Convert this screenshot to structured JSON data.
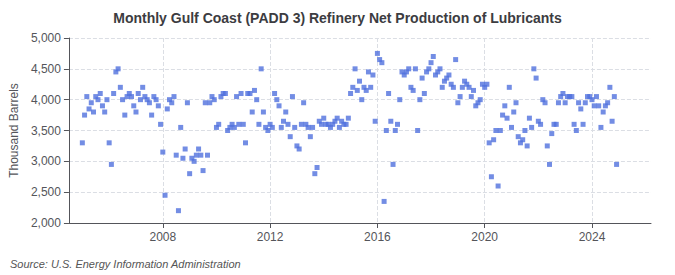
{
  "chart_data": {
    "type": "scatter",
    "title": "Monthly Gulf Coast (PADD 3) Refinery Net Production of Lubricants",
    "ylabel": "Thousand Barrels",
    "annotation": "Source: U.S. Energy Information Administration",
    "marker": "square",
    "grid": true,
    "xlim": [
      2004.5,
      2026.2
    ],
    "xticks": [
      2008,
      2012,
      2016,
      2020,
      2024
    ],
    "ylim": [
      2000,
      5000
    ],
    "yticks": [
      {
        "value": 2000,
        "label": "2,000"
      },
      {
        "value": 2500,
        "label": "2,500"
      },
      {
        "value": 3000,
        "label": "3,000"
      },
      {
        "value": 3500,
        "label": "3,500"
      },
      {
        "value": 4000,
        "label": "4,000"
      },
      {
        "value": 4500,
        "label": "4,500"
      },
      {
        "value": 5000,
        "label": "5,000"
      }
    ],
    "x": [
      2005.0,
      2005.083,
      2005.167,
      2005.25,
      2005.333,
      2005.417,
      2005.5,
      2005.583,
      2005.667,
      2005.75,
      2005.833,
      2005.917,
      2006.0,
      2006.083,
      2006.167,
      2006.25,
      2006.333,
      2006.417,
      2006.5,
      2006.583,
      2006.667,
      2006.75,
      2006.833,
      2006.917,
      2007.0,
      2007.083,
      2007.167,
      2007.25,
      2007.333,
      2007.417,
      2007.5,
      2007.583,
      2007.667,
      2007.75,
      2007.833,
      2007.917,
      2008.0,
      2008.083,
      2008.167,
      2008.25,
      2008.333,
      2008.417,
      2008.5,
      2008.583,
      2008.667,
      2008.75,
      2008.833,
      2008.917,
      2009.0,
      2009.083,
      2009.167,
      2009.25,
      2009.333,
      2009.417,
      2009.5,
      2009.583,
      2009.667,
      2009.75,
      2009.833,
      2009.917,
      2010.0,
      2010.083,
      2010.167,
      2010.25,
      2010.333,
      2010.417,
      2010.5,
      2010.583,
      2010.667,
      2010.75,
      2010.833,
      2010.917,
      2011.0,
      2011.083,
      2011.167,
      2011.25,
      2011.333,
      2011.417,
      2011.5,
      2011.583,
      2011.667,
      2011.75,
      2011.833,
      2011.917,
      2012.0,
      2012.083,
      2012.167,
      2012.25,
      2012.333,
      2012.417,
      2012.5,
      2012.583,
      2012.667,
      2012.75,
      2012.833,
      2012.917,
      2013.0,
      2013.083,
      2013.167,
      2013.25,
      2013.333,
      2013.417,
      2013.5,
      2013.583,
      2013.667,
      2013.75,
      2013.833,
      2013.917,
      2014.0,
      2014.083,
      2014.167,
      2014.25,
      2014.333,
      2014.417,
      2014.5,
      2014.583,
      2014.667,
      2014.75,
      2014.833,
      2014.917,
      2015.0,
      2015.083,
      2015.167,
      2015.25,
      2015.333,
      2015.417,
      2015.5,
      2015.583,
      2015.667,
      2015.75,
      2015.833,
      2015.917,
      2016.0,
      2016.083,
      2016.167,
      2016.25,
      2016.333,
      2016.417,
      2016.5,
      2016.583,
      2016.667,
      2016.75,
      2016.833,
      2016.917,
      2017.0,
      2017.083,
      2017.167,
      2017.25,
      2017.333,
      2017.417,
      2017.5,
      2017.583,
      2017.667,
      2017.75,
      2017.833,
      2017.917,
      2018.0,
      2018.083,
      2018.167,
      2018.25,
      2018.333,
      2018.417,
      2018.5,
      2018.583,
      2018.667,
      2018.75,
      2018.833,
      2018.917,
      2019.0,
      2019.083,
      2019.167,
      2019.25,
      2019.333,
      2019.417,
      2019.5,
      2019.583,
      2019.667,
      2019.75,
      2019.833,
      2019.917,
      2020.0,
      2020.083,
      2020.167,
      2020.25,
      2020.333,
      2020.417,
      2020.5,
      2020.583,
      2020.667,
      2020.75,
      2020.833,
      2020.917,
      2021.0,
      2021.083,
      2021.167,
      2021.25,
      2021.333,
      2021.417,
      2021.5,
      2021.583,
      2021.667,
      2021.75,
      2021.833,
      2021.917,
      2022.0,
      2022.083,
      2022.167,
      2022.25,
      2022.333,
      2022.417,
      2022.5,
      2022.583,
      2022.667,
      2022.75,
      2022.833,
      2022.917,
      2023.0,
      2023.083,
      2023.167,
      2023.25,
      2023.333,
      2023.417,
      2023.5,
      2023.583,
      2023.667,
      2023.75,
      2023.833,
      2023.917,
      2024.0,
      2024.083,
      2024.167,
      2024.25,
      2024.333,
      2024.417,
      2024.5,
      2024.583,
      2024.667,
      2024.75,
      2024.833,
      2024.917
    ],
    "values": [
      3300,
      3750,
      4050,
      3850,
      3950,
      3800,
      4050,
      4000,
      4100,
      3900,
      3800,
      4000,
      3300,
      2950,
      4100,
      4450,
      4500,
      4200,
      4000,
      3750,
      4050,
      4100,
      4050,
      3900,
      3800,
      4100,
      4000,
      4200,
      4050,
      4000,
      3950,
      3750,
      4050,
      4000,
      3900,
      3600,
      3150,
      2450,
      3850,
      4000,
      3950,
      4050,
      3100,
      2200,
      3550,
      3050,
      3200,
      3950,
      2800,
      3050,
      3000,
      3100,
      3200,
      3100,
      2850,
      3950,
      3100,
      3950,
      4050,
      4000,
      3550,
      3600,
      4050,
      4100,
      4100,
      3500,
      3550,
      3600,
      3550,
      4050,
      3600,
      4100,
      3600,
      3300,
      4100,
      4100,
      3800,
      4150,
      4000,
      3600,
      4500,
      3800,
      3550,
      3500,
      3600,
      3550,
      4100,
      4000,
      3900,
      3550,
      3650,
      3800,
      3600,
      3400,
      4050,
      3550,
      3250,
      3200,
      3600,
      3950,
      3600,
      3550,
      3400,
      3550,
      2800,
      2900,
      3650,
      3600,
      3700,
      3600,
      3600,
      3550,
      3600,
      3650,
      3700,
      3550,
      3650,
      3600,
      3600,
      3700,
      4100,
      4200,
      4500,
      4150,
      4300,
      4000,
      4200,
      4150,
      4450,
      4200,
      4400,
      3650,
      4750,
      4650,
      4600,
      2350,
      3500,
      4100,
      3650,
      2950,
      3500,
      3600,
      4000,
      4450,
      4400,
      4450,
      4500,
      4200,
      4150,
      4500,
      3500,
      4000,
      4350,
      4100,
      4450,
      4500,
      4600,
      4700,
      4400,
      4450,
      4500,
      4200,
      4300,
      4350,
      4400,
      4250,
      4200,
      4650,
      3950,
      4050,
      4200,
      4300,
      4250,
      4200,
      4050,
      4150,
      3900,
      3950,
      4000,
      4250,
      4200,
      4250,
      3300,
      2750,
      3350,
      3500,
      2600,
      3500,
      3750,
      3900,
      3700,
      4200,
      3550,
      3800,
      3950,
      3400,
      3300,
      3350,
      3500,
      3250,
      3700,
      3550,
      4500,
      4350,
      3650,
      3600,
      4000,
      3950,
      3250,
      2950,
      3450,
      3600,
      3600,
      3950,
      4050,
      4100,
      3950,
      4050,
      4050,
      4050,
      3600,
      3500,
      3950,
      3850,
      3600,
      3950,
      4050,
      4050,
      4000,
      3900,
      4050,
      3900,
      3550,
      3800,
      3900,
      3950,
      4200,
      3650,
      4050,
      2950
    ]
  }
}
